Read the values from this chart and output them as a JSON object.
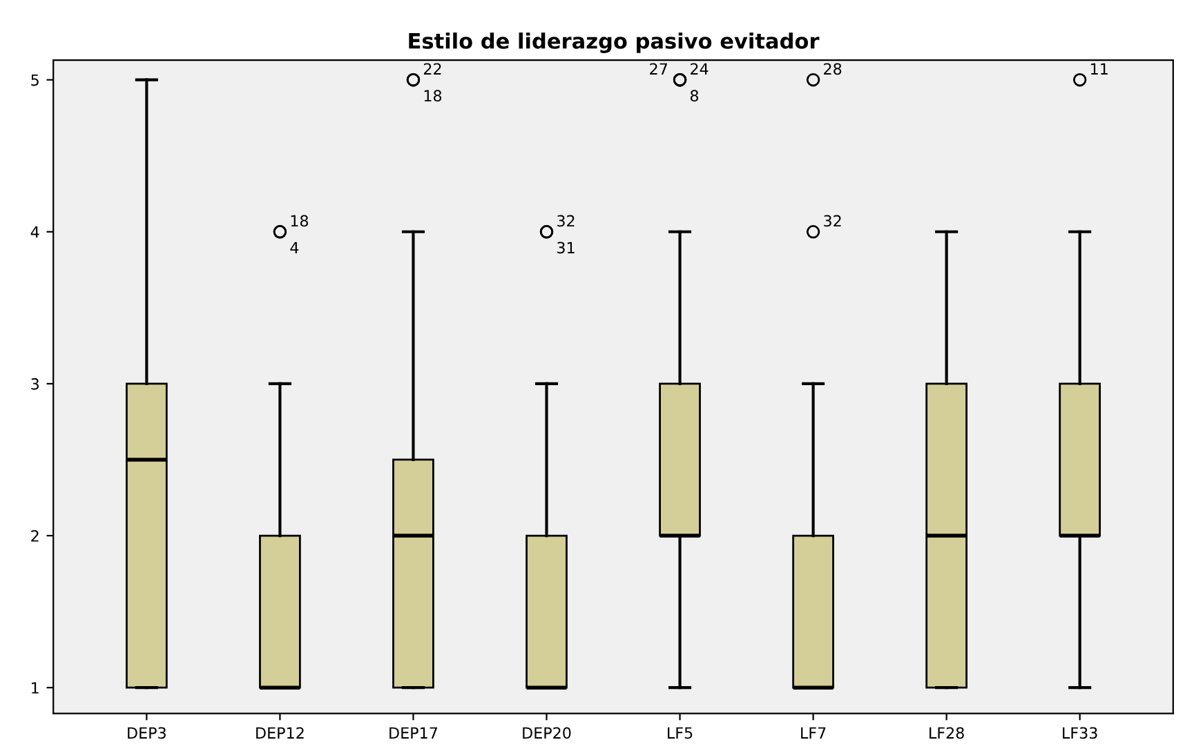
{
  "chart_data": {
    "type": "box",
    "title": "Estilo de liderazgo pasivo evitador",
    "categories": [
      "DEP3",
      "DEP12",
      "DEP17",
      "DEP20",
      "LF5",
      "LF7",
      "LF28",
      "LF33"
    ],
    "boxes": [
      {
        "low": 1,
        "q1": 1,
        "median": 2.5,
        "q3": 3,
        "high": 5
      },
      {
        "low": 1,
        "q1": 1,
        "median": 1,
        "q3": 2,
        "high": 3,
        "outliers": [
          4,
          4
        ]
      },
      {
        "low": 1,
        "q1": 1,
        "median": 2,
        "q3": 2.5,
        "high": 4,
        "outliers": [
          5,
          5
        ]
      },
      {
        "low": 1,
        "q1": 1,
        "median": 1,
        "q3": 2,
        "high": 3,
        "outliers": [
          4,
          4
        ]
      },
      {
        "low": 1,
        "q1": 2,
        "median": 2,
        "q3": 3,
        "high": 4,
        "outliers": [
          5,
          5,
          5
        ]
      },
      {
        "low": 1,
        "q1": 1,
        "median": 1,
        "q3": 2,
        "high": 3,
        "outliers": [
          4,
          5
        ]
      },
      {
        "low": 1,
        "q1": 1,
        "median": 2,
        "q3": 3,
        "high": 4
      },
      {
        "low": 1,
        "q1": 2,
        "median": 2,
        "q3": 3,
        "high": 4,
        "outliers": [
          5
        ]
      }
    ],
    "color": "#d4cf98",
    "ylim": [
      0.83,
      5.13
    ],
    "yticks": [
      1,
      2,
      3,
      4,
      5
    ],
    "grid": false,
    "annotations": [
      "18",
      "4",
      "22",
      "18",
      "32",
      "31",
      "24",
      "8",
      "27",
      "32",
      "28",
      "11"
    ]
  }
}
